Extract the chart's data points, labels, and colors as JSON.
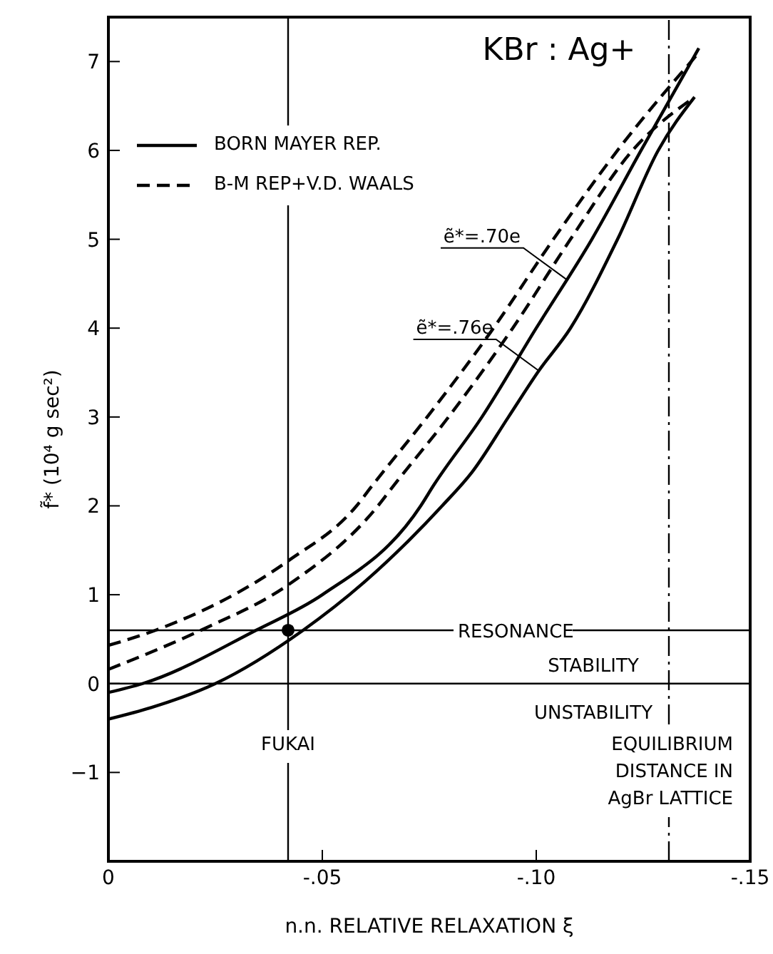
{
  "chart_data": {
    "type": "line",
    "title": "KBr : Ag+",
    "xlabel": "n.n. RELATIVE RELAXATION ξ",
    "ylabel": "f̃* (10⁴ g sec²)",
    "xlim": [
      0,
      -0.15
    ],
    "xticks": [
      0,
      {
        "value": -0.05,
        "label": "-.05"
      },
      {
        "value": -0.1,
        "label": "-.10"
      },
      {
        "value": -0.15,
        "label": "-.15"
      }
    ],
    "ylim": [
      -2,
      7.5
    ],
    "yticks": [
      -1,
      0,
      1,
      2,
      3,
      4,
      5,
      6,
      7
    ],
    "legend": "top left",
    "marker": "none",
    "series": [
      {
        "name": "BORN MAYER REP.",
        "color": "#000000",
        "line_style": "solid",
        "x": [
          0,
          -0.01,
          -0.025,
          -0.0455,
          -0.06,
          -0.07,
          -0.078,
          -0.085,
          -0.0935,
          -0.1006,
          -0.108,
          -0.119,
          -0.1285,
          -0.137
        ],
        "values": [
          -0.4,
          -0.27,
          0,
          0.6,
          1.15,
          1.6,
          2,
          2.38,
          3,
          3.52,
          4,
          5,
          6,
          6.6
        ]
      },
      {
        "color": "#000000",
        "line_style": "solid",
        "x": [
          0,
          -0.008,
          -0.0345,
          -0.05,
          -0.073,
          -0.076,
          -0.0873,
          -0.1,
          -0.113,
          -0.1245,
          -0.138
        ],
        "values": [
          -0.1,
          0,
          0.6,
          1,
          2,
          2.23,
          3,
          4,
          5,
          6,
          7.15
        ]
      },
      {
        "name": "B-M REP+V.D. WAALS",
        "color": "#000000",
        "line_style": "dashed",
        "x": [
          0,
          -0.011,
          -0.042,
          -0.058,
          -0.0617,
          -0.0745,
          -0.09,
          -0.104,
          -0.119,
          -0.138
        ],
        "values": [
          0.43,
          0.6,
          1.38,
          2,
          2.23,
          3,
          4,
          5,
          6,
          7.1
        ]
      },
      {
        "color": "#000000",
        "line_style": "dashed",
        "x": [
          0,
          -0.0216,
          -0.042,
          -0.063,
          -0.0667,
          -0.0795,
          -0.0945,
          -0.108,
          -0.1225,
          -0.137
        ],
        "values": [
          0.16,
          0.6,
          1.11,
          2,
          2.23,
          3,
          4,
          5,
          6,
          6.6
        ]
      },
      {
        "type": "scatter",
        "color": "#000000",
        "marker": "circle",
        "x": [
          -0.042
        ],
        "values": [
          0.6
        ]
      }
    ],
    "ref_lines": [
      {
        "axis": "y",
        "value": 0.6,
        "label": "RESONANCE"
      },
      {
        "axis": "y",
        "value": 0
      },
      {
        "axis": "x",
        "value": -0.042,
        "label": "FUKAI"
      },
      {
        "axis": "x",
        "value": -0.131,
        "label": "EQUILIBRIUM DISTANCE IN AgBr LATTICE",
        "line_style": "dashed"
      }
    ],
    "annotations": [
      {
        "text": "ẽ*=.70e",
        "x": -0.107,
        "y": 4.55
      },
      {
        "text": "ẽ*=.76e",
        "x": -0.1006,
        "y": 3.52
      },
      "STABILITY",
      "UNSTABILITY"
    ]
  }
}
